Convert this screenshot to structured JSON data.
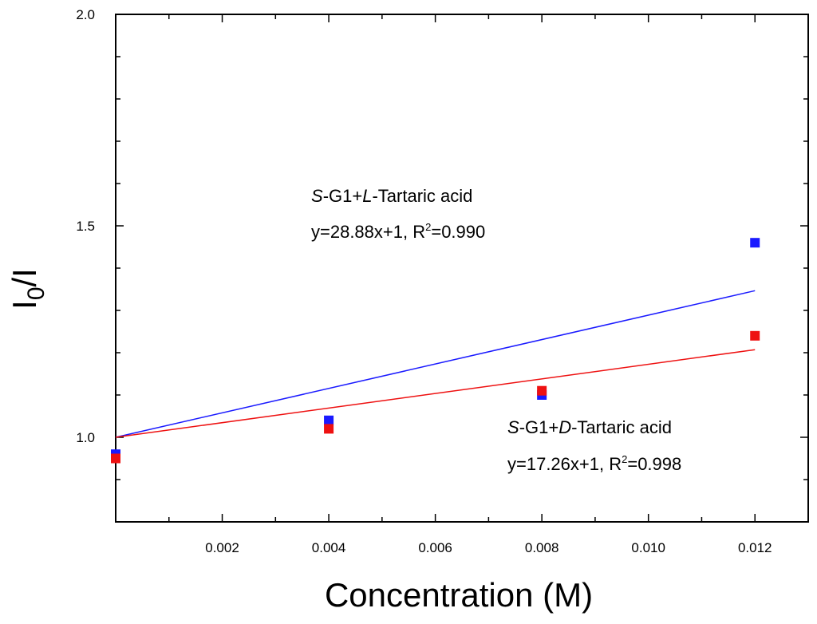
{
  "chart_data": {
    "type": "scatter",
    "title": "",
    "xlabel": "Concentration (M)",
    "ylabel_base": "I",
    "ylabel_sub": "0",
    "ylabel_tail": "/I",
    "xlim": [
      0.0,
      0.013
    ],
    "ylim": [
      0.8,
      2.0
    ],
    "x_ticks": [
      {
        "value": 0.002,
        "label": "0.002"
      },
      {
        "value": 0.004,
        "label": "0.004"
      },
      {
        "value": 0.006,
        "label": "0.006"
      },
      {
        "value": 0.008,
        "label": "0.008"
      },
      {
        "value": 0.01,
        "label": "0.010"
      },
      {
        "value": 0.012,
        "label": "0.012"
      }
    ],
    "y_ticks": [
      {
        "value": 1.0,
        "label": "1.0"
      },
      {
        "value": 1.5,
        "label": "1.5"
      },
      {
        "value": 2.0,
        "label": "2.0"
      }
    ],
    "series": [
      {
        "name": "S-G1+L-Tartaric acid",
        "color": "#1a1aff",
        "points": [
          [
            0.0,
            0.96
          ],
          [
            0.004,
            1.04
          ],
          [
            0.008,
            1.1
          ],
          [
            0.012,
            1.46
          ]
        ],
        "fit": {
          "slope": 28.88,
          "intercept": 1,
          "x_range": [
            0.0,
            0.012
          ]
        }
      },
      {
        "name": "S-G1+D-Tartaric acid",
        "color": "#ee1111",
        "points": [
          [
            0.0,
            0.95
          ],
          [
            0.004,
            1.02
          ],
          [
            0.008,
            1.11
          ],
          [
            0.012,
            1.24
          ]
        ],
        "fit": {
          "slope": 17.26,
          "intercept": 1,
          "x_range": [
            0.0,
            0.012
          ]
        }
      }
    ],
    "annotations": [
      {
        "prefix": "S",
        "middle": "-G1+",
        "enantiomer": "L",
        "suffix": "-Tartaric acid",
        "eq_text": "y=28.88x+1, R",
        "sup": "2",
        "r2_value": "=0.990"
      },
      {
        "prefix": "S",
        "middle": "-G1+",
        "enantiomer": "D",
        "suffix": "-Tartaric acid",
        "eq_text": "y=17.26x+1, R",
        "sup": "2",
        "r2_value": "=0.998"
      }
    ]
  }
}
